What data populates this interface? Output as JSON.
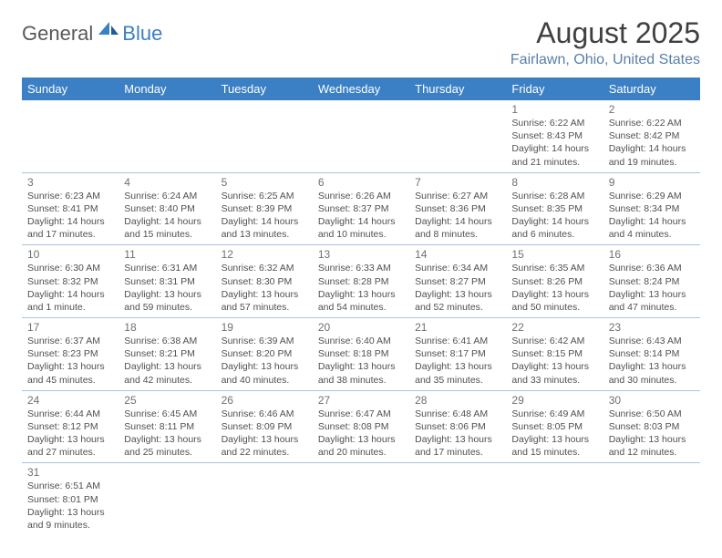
{
  "logo": {
    "text1": "General",
    "text2": "Blue"
  },
  "title": "August 2025",
  "location": "Fairlawn, Ohio, United States",
  "colors": {
    "header_bg": "#3b7fc4",
    "header_text": "#ffffff",
    "location_text": "#5a7fa8",
    "border": "#a8c4dd"
  },
  "weekdays": [
    "Sunday",
    "Monday",
    "Tuesday",
    "Wednesday",
    "Thursday",
    "Friday",
    "Saturday"
  ],
  "weeks": [
    [
      null,
      null,
      null,
      null,
      null,
      {
        "day": "1",
        "sunrise": "Sunrise: 6:22 AM",
        "sunset": "Sunset: 8:43 PM",
        "day1": "Daylight: 14 hours",
        "day2": "and 21 minutes."
      },
      {
        "day": "2",
        "sunrise": "Sunrise: 6:22 AM",
        "sunset": "Sunset: 8:42 PM",
        "day1": "Daylight: 14 hours",
        "day2": "and 19 minutes."
      }
    ],
    [
      {
        "day": "3",
        "sunrise": "Sunrise: 6:23 AM",
        "sunset": "Sunset: 8:41 PM",
        "day1": "Daylight: 14 hours",
        "day2": "and 17 minutes."
      },
      {
        "day": "4",
        "sunrise": "Sunrise: 6:24 AM",
        "sunset": "Sunset: 8:40 PM",
        "day1": "Daylight: 14 hours",
        "day2": "and 15 minutes."
      },
      {
        "day": "5",
        "sunrise": "Sunrise: 6:25 AM",
        "sunset": "Sunset: 8:39 PM",
        "day1": "Daylight: 14 hours",
        "day2": "and 13 minutes."
      },
      {
        "day": "6",
        "sunrise": "Sunrise: 6:26 AM",
        "sunset": "Sunset: 8:37 PM",
        "day1": "Daylight: 14 hours",
        "day2": "and 10 minutes."
      },
      {
        "day": "7",
        "sunrise": "Sunrise: 6:27 AM",
        "sunset": "Sunset: 8:36 PM",
        "day1": "Daylight: 14 hours",
        "day2": "and 8 minutes."
      },
      {
        "day": "8",
        "sunrise": "Sunrise: 6:28 AM",
        "sunset": "Sunset: 8:35 PM",
        "day1": "Daylight: 14 hours",
        "day2": "and 6 minutes."
      },
      {
        "day": "9",
        "sunrise": "Sunrise: 6:29 AM",
        "sunset": "Sunset: 8:34 PM",
        "day1": "Daylight: 14 hours",
        "day2": "and 4 minutes."
      }
    ],
    [
      {
        "day": "10",
        "sunrise": "Sunrise: 6:30 AM",
        "sunset": "Sunset: 8:32 PM",
        "day1": "Daylight: 14 hours",
        "day2": "and 1 minute."
      },
      {
        "day": "11",
        "sunrise": "Sunrise: 6:31 AM",
        "sunset": "Sunset: 8:31 PM",
        "day1": "Daylight: 13 hours",
        "day2": "and 59 minutes."
      },
      {
        "day": "12",
        "sunrise": "Sunrise: 6:32 AM",
        "sunset": "Sunset: 8:30 PM",
        "day1": "Daylight: 13 hours",
        "day2": "and 57 minutes."
      },
      {
        "day": "13",
        "sunrise": "Sunrise: 6:33 AM",
        "sunset": "Sunset: 8:28 PM",
        "day1": "Daylight: 13 hours",
        "day2": "and 54 minutes."
      },
      {
        "day": "14",
        "sunrise": "Sunrise: 6:34 AM",
        "sunset": "Sunset: 8:27 PM",
        "day1": "Daylight: 13 hours",
        "day2": "and 52 minutes."
      },
      {
        "day": "15",
        "sunrise": "Sunrise: 6:35 AM",
        "sunset": "Sunset: 8:26 PM",
        "day1": "Daylight: 13 hours",
        "day2": "and 50 minutes."
      },
      {
        "day": "16",
        "sunrise": "Sunrise: 6:36 AM",
        "sunset": "Sunset: 8:24 PM",
        "day1": "Daylight: 13 hours",
        "day2": "and 47 minutes."
      }
    ],
    [
      {
        "day": "17",
        "sunrise": "Sunrise: 6:37 AM",
        "sunset": "Sunset: 8:23 PM",
        "day1": "Daylight: 13 hours",
        "day2": "and 45 minutes."
      },
      {
        "day": "18",
        "sunrise": "Sunrise: 6:38 AM",
        "sunset": "Sunset: 8:21 PM",
        "day1": "Daylight: 13 hours",
        "day2": "and 42 minutes."
      },
      {
        "day": "19",
        "sunrise": "Sunrise: 6:39 AM",
        "sunset": "Sunset: 8:20 PM",
        "day1": "Daylight: 13 hours",
        "day2": "and 40 minutes."
      },
      {
        "day": "20",
        "sunrise": "Sunrise: 6:40 AM",
        "sunset": "Sunset: 8:18 PM",
        "day1": "Daylight: 13 hours",
        "day2": "and 38 minutes."
      },
      {
        "day": "21",
        "sunrise": "Sunrise: 6:41 AM",
        "sunset": "Sunset: 8:17 PM",
        "day1": "Daylight: 13 hours",
        "day2": "and 35 minutes."
      },
      {
        "day": "22",
        "sunrise": "Sunrise: 6:42 AM",
        "sunset": "Sunset: 8:15 PM",
        "day1": "Daylight: 13 hours",
        "day2": "and 33 minutes."
      },
      {
        "day": "23",
        "sunrise": "Sunrise: 6:43 AM",
        "sunset": "Sunset: 8:14 PM",
        "day1": "Daylight: 13 hours",
        "day2": "and 30 minutes."
      }
    ],
    [
      {
        "day": "24",
        "sunrise": "Sunrise: 6:44 AM",
        "sunset": "Sunset: 8:12 PM",
        "day1": "Daylight: 13 hours",
        "day2": "and 27 minutes."
      },
      {
        "day": "25",
        "sunrise": "Sunrise: 6:45 AM",
        "sunset": "Sunset: 8:11 PM",
        "day1": "Daylight: 13 hours",
        "day2": "and 25 minutes."
      },
      {
        "day": "26",
        "sunrise": "Sunrise: 6:46 AM",
        "sunset": "Sunset: 8:09 PM",
        "day1": "Daylight: 13 hours",
        "day2": "and 22 minutes."
      },
      {
        "day": "27",
        "sunrise": "Sunrise: 6:47 AM",
        "sunset": "Sunset: 8:08 PM",
        "day1": "Daylight: 13 hours",
        "day2": "and 20 minutes."
      },
      {
        "day": "28",
        "sunrise": "Sunrise: 6:48 AM",
        "sunset": "Sunset: 8:06 PM",
        "day1": "Daylight: 13 hours",
        "day2": "and 17 minutes."
      },
      {
        "day": "29",
        "sunrise": "Sunrise: 6:49 AM",
        "sunset": "Sunset: 8:05 PM",
        "day1": "Daylight: 13 hours",
        "day2": "and 15 minutes."
      },
      {
        "day": "30",
        "sunrise": "Sunrise: 6:50 AM",
        "sunset": "Sunset: 8:03 PM",
        "day1": "Daylight: 13 hours",
        "day2": "and 12 minutes."
      }
    ],
    [
      {
        "day": "31",
        "sunrise": "Sunrise: 6:51 AM",
        "sunset": "Sunset: 8:01 PM",
        "day1": "Daylight: 13 hours",
        "day2": "and 9 minutes."
      },
      null,
      null,
      null,
      null,
      null,
      null
    ]
  ]
}
